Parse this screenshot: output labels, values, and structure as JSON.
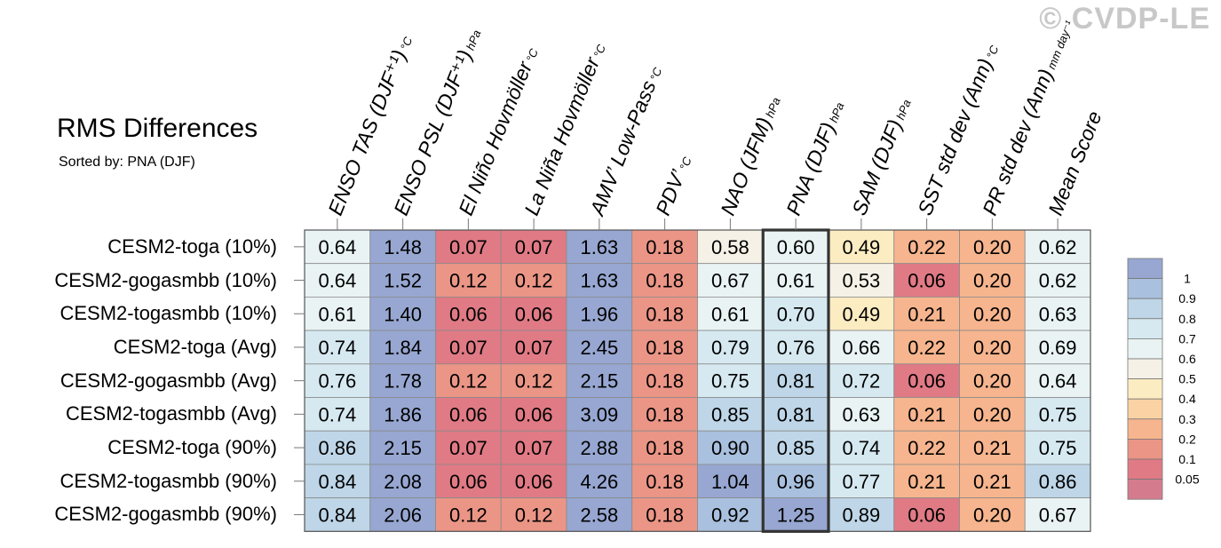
{
  "header": {
    "title": "RMS Differences",
    "subtitle": "Sorted by: PNA (DJF)",
    "watermark": "© CVDP-LE"
  },
  "chart_data": {
    "type": "heatmap",
    "title": "RMS Differences",
    "subtitle": "Sorted by: PNA (DJF)",
    "highlighted_column": "PNA (DJF)",
    "columns": [
      {
        "label": "ENSO TAS (DJF⁺¹)",
        "unit": "°C"
      },
      {
        "label": "ENSO PSL (DJF⁺¹)",
        "unit": "hPa"
      },
      {
        "label": "El Niño Hovmöller",
        "unit": "°C"
      },
      {
        "label": "La Niña Hovmöller",
        "unit": "°C"
      },
      {
        "label": "AMV’ Low-Pass",
        "unit": "°C"
      },
      {
        "label": "PDV’",
        "unit": "°C"
      },
      {
        "label": "NAO (JFM)",
        "unit": "hPa"
      },
      {
        "label": "PNA (DJF)",
        "unit": "hPa"
      },
      {
        "label": "SAM (DJF)",
        "unit": "hPa"
      },
      {
        "label": "SST std dev (Ann)",
        "unit": "°C"
      },
      {
        "label": "PR std dev (Ann)",
        "unit": "mm day⁻¹"
      },
      {
        "label": "Mean Score",
        "unit": ""
      }
    ],
    "rows": [
      {
        "label": "CESM2-toga (10%)",
        "values": [
          "0.64",
          "1.48",
          "0.07",
          "0.07",
          "1.63",
          "0.18",
          "0.58",
          "0.60",
          "0.49",
          "0.22",
          "0.20",
          "0.62"
        ]
      },
      {
        "label": "CESM2-gogasmbb (10%)",
        "values": [
          "0.64",
          "1.52",
          "0.12",
          "0.12",
          "1.63",
          "0.18",
          "0.67",
          "0.61",
          "0.53",
          "0.06",
          "0.20",
          "0.62"
        ]
      },
      {
        "label": "CESM2-togasmbb (10%)",
        "values": [
          "0.61",
          "1.40",
          "0.06",
          "0.06",
          "1.96",
          "0.18",
          "0.61",
          "0.70",
          "0.49",
          "0.21",
          "0.20",
          "0.63"
        ]
      },
      {
        "label": "CESM2-toga (Avg)",
        "values": [
          "0.74",
          "1.84",
          "0.07",
          "0.07",
          "2.45",
          "0.18",
          "0.79",
          "0.76",
          "0.66",
          "0.22",
          "0.20",
          "0.69"
        ]
      },
      {
        "label": "CESM2-gogasmbb (Avg)",
        "values": [
          "0.76",
          "1.78",
          "0.12",
          "0.12",
          "2.15",
          "0.18",
          "0.75",
          "0.81",
          "0.72",
          "0.06",
          "0.20",
          "0.64"
        ]
      },
      {
        "label": "CESM2-togasmbb (Avg)",
        "values": [
          "0.74",
          "1.86",
          "0.06",
          "0.06",
          "3.09",
          "0.18",
          "0.85",
          "0.81",
          "0.63",
          "0.21",
          "0.20",
          "0.75"
        ]
      },
      {
        "label": "CESM2-toga (90%)",
        "values": [
          "0.86",
          "2.15",
          "0.07",
          "0.07",
          "2.88",
          "0.18",
          "0.90",
          "0.85",
          "0.74",
          "0.22",
          "0.21",
          "0.75"
        ]
      },
      {
        "label": "CESM2-togasmbb (90%)",
        "values": [
          "0.84",
          "2.08",
          "0.06",
          "0.06",
          "4.26",
          "0.18",
          "1.04",
          "0.96",
          "0.77",
          "0.21",
          "0.21",
          "0.86"
        ]
      },
      {
        "label": "CESM2-gogasmbb (90%)",
        "values": [
          "0.84",
          "2.06",
          "0.12",
          "0.12",
          "2.58",
          "0.18",
          "0.92",
          "1.25",
          "0.89",
          "0.06",
          "0.20",
          "0.67"
        ]
      }
    ],
    "colorbar": {
      "labels": [
        "1",
        "0.9",
        "0.8",
        "0.7",
        "0.6",
        "0.5",
        "0.4",
        "0.3",
        "0.2",
        "0.1",
        "0.05"
      ],
      "colors": [
        "#97a7d1",
        "#a9c0de",
        "#bed6e7",
        "#d6e9f1",
        "#e9f3f4",
        "#f5f1e6",
        "#fcecc2",
        "#fbd2a4",
        "#f6b58e",
        "#eb9586",
        "#e07a85",
        "#d47c8e"
      ],
      "thresholds": [
        1,
        0.9,
        0.8,
        0.7,
        0.6,
        0.5,
        0.4,
        0.3,
        0.2,
        0.1,
        0.05
      ]
    }
  }
}
